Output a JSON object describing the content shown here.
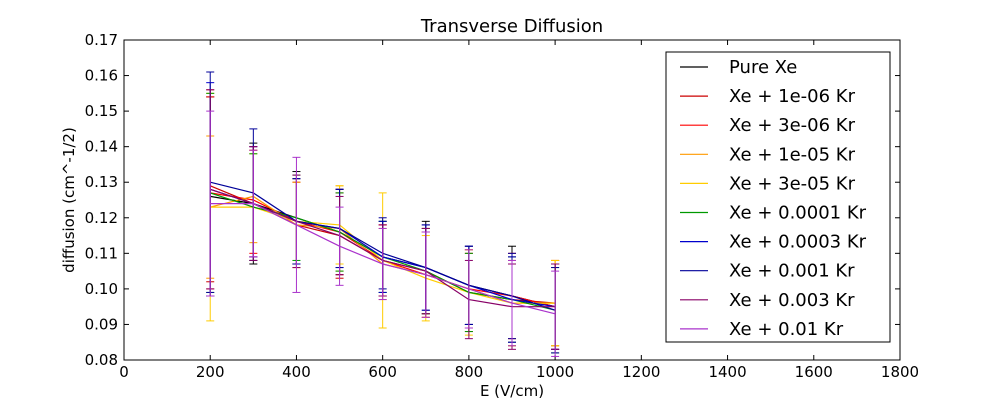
{
  "chart_data": {
    "type": "line",
    "title": "Transverse Diffusion",
    "xlabel": "E (V/cm)",
    "ylabel": "diffusion (cm^-1/2)",
    "xlim": [
      0,
      1800
    ],
    "ylim": [
      0.08,
      0.17
    ],
    "x_ticks": [
      "0",
      "200",
      "400",
      "600",
      "800",
      "1000",
      "1200",
      "1400",
      "1600",
      "1800"
    ],
    "y_ticks": [
      "0.08",
      "0.09",
      "0.10",
      "0.11",
      "0.12",
      "0.13",
      "0.14",
      "0.15",
      "0.16",
      "0.17"
    ],
    "x": [
      200,
      300,
      400,
      500,
      600,
      700,
      800,
      900,
      1000
    ],
    "grid": false,
    "legend_position": "upper right",
    "series": [
      {
        "name": "Pure Xe",
        "color": "#000000",
        "values": [
          0.126,
          0.124,
          0.12,
          0.116,
          0.109,
          0.106,
          0.101,
          0.098,
          0.095
        ],
        "errors": [
          0.028,
          0.017,
          0.013,
          0.012,
          0.01,
          0.013,
          0.011,
          0.014,
          0.012
        ]
      },
      {
        "name": "Xe + 1e-06 Kr",
        "color": "#cc0000",
        "values": [
          0.129,
          0.124,
          0.118,
          0.115,
          0.108,
          0.105,
          0.099,
          0.097,
          0.096
        ],
        "errors": [
          0.027,
          0.015,
          0.012,
          0.012,
          0.01,
          0.012,
          0.011,
          0.012,
          0.012
        ]
      },
      {
        "name": "Xe + 3e-06 Kr",
        "color": "#ff0000",
        "values": [
          0.127,
          0.125,
          0.119,
          0.116,
          0.108,
          0.104,
          0.1,
          0.098,
          0.095
        ],
        "errors": [
          0.027,
          0.015,
          0.012,
          0.012,
          0.01,
          0.012,
          0.011,
          0.012,
          0.012
        ]
      },
      {
        "name": "Xe + 1e-05 Kr",
        "color": "#ff9900",
        "values": [
          0.123,
          0.126,
          0.118,
          0.117,
          0.107,
          0.104,
          0.1,
          0.096,
          0.096
        ],
        "errors": [
          0.02,
          0.013,
          0.012,
          0.012,
          0.01,
          0.012,
          0.011,
          0.012,
          0.012
        ]
      },
      {
        "name": "Xe + 3e-05 Kr",
        "color": "#ffcc00",
        "values": [
          0.123,
          0.123,
          0.119,
          0.118,
          0.108,
          0.103,
          0.099,
          0.096,
          0.096
        ],
        "errors": [
          0.032,
          0.015,
          0.012,
          0.011,
          0.019,
          0.012,
          0.012,
          0.012,
          0.012
        ]
      },
      {
        "name": "Xe + 0.0001 Kr",
        "color": "#009900",
        "values": [
          0.127,
          0.123,
          0.12,
          0.116,
          0.109,
          0.105,
          0.099,
          0.097,
          0.094
        ],
        "errors": [
          0.028,
          0.015,
          0.012,
          0.011,
          0.01,
          0.012,
          0.011,
          0.012,
          0.012
        ]
      },
      {
        "name": "Xe + 0.0003 Kr",
        "color": "#0000cc",
        "values": [
          0.128,
          0.124,
          0.119,
          0.117,
          0.109,
          0.106,
          0.101,
          0.097,
          0.095
        ],
        "errors": [
          0.03,
          0.016,
          0.012,
          0.011,
          0.01,
          0.012,
          0.011,
          0.012,
          0.012
        ]
      },
      {
        "name": "Xe + 0.001 Kr",
        "color": "#000099",
        "values": [
          0.13,
          0.127,
          0.119,
          0.117,
          0.11,
          0.106,
          0.101,
          0.098,
          0.094
        ],
        "errors": [
          0.031,
          0.018,
          0.012,
          0.011,
          0.01,
          0.012,
          0.011,
          0.012,
          0.012
        ]
      },
      {
        "name": "Xe + 0.003 Kr",
        "color": "#880066",
        "values": [
          0.128,
          0.124,
          0.119,
          0.115,
          0.108,
          0.105,
          0.097,
          0.095,
          0.095
        ],
        "errors": [
          0.028,
          0.016,
          0.013,
          0.011,
          0.01,
          0.012,
          0.011,
          0.012,
          0.012
        ]
      },
      {
        "name": "Xe + 0.01 Kr",
        "color": "#aa33cc",
        "values": [
          0.124,
          0.124,
          0.118,
          0.112,
          0.107,
          0.104,
          0.1,
          0.096,
          0.093
        ],
        "errors": [
          0.026,
          0.015,
          0.019,
          0.011,
          0.01,
          0.012,
          0.011,
          0.012,
          0.012
        ]
      }
    ]
  }
}
